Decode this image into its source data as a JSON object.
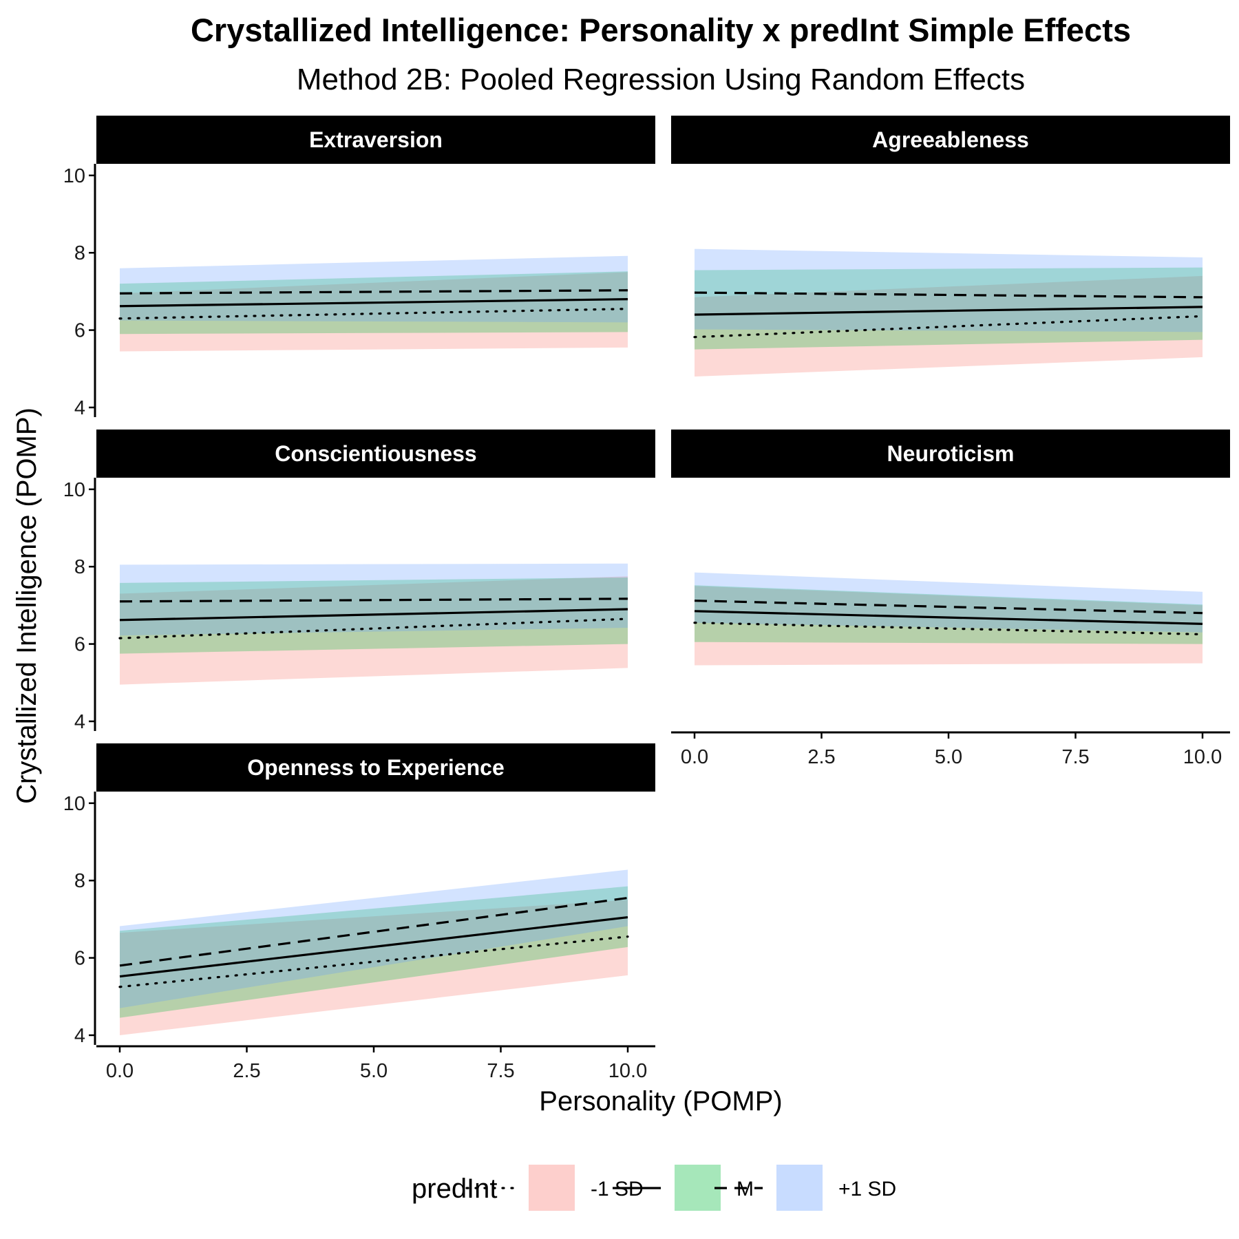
{
  "chart_data": {
    "type": "line",
    "title": "Crystallized Intelligence: Personality x predInt Simple Effects",
    "subtitle": "Method 2B: Pooled Regression Using Random Effects",
    "xlabel": "Personality (POMP)",
    "ylabel": "Crystallized Intelligence (POMP)",
    "xlim": [
      -0.4,
      10.5
    ],
    "ylim": [
      3.75,
      10.3
    ],
    "x_ticks": [
      0,
      2.5,
      5,
      7.5,
      10
    ],
    "x_tick_labels": [
      "0.0",
      "2.5",
      "5.0",
      "7.5",
      "10.0"
    ],
    "y_ticks": [
      4,
      6,
      8,
      10
    ],
    "y_tick_labels": [
      "4",
      "6",
      "8",
      "10"
    ],
    "grid": false,
    "legend": {
      "title": "predInt",
      "position": "bottom",
      "entries": [
        {
          "label": "-1 SD",
          "fill": "#F8766D",
          "linetype": "dotted"
        },
        {
          "label": "M",
          "fill": "#00BA38",
          "linetype": "solid"
        },
        {
          "label": "+1 SD",
          "fill": "#619CFF",
          "linetype": "dashed"
        }
      ]
    },
    "ribbon_opacity": 0.28,
    "line_color": "#000000",
    "panels": [
      {
        "name": "Extraversion",
        "x": [
          0,
          10
        ],
        "series": [
          {
            "name": "-1 SD",
            "y": [
              6.3,
              6.55
            ],
            "lower": [
              5.45,
              5.55
            ],
            "upper": [
              6.95,
              7.5
            ]
          },
          {
            "name": "M",
            "y": [
              6.62,
              6.8
            ],
            "lower": [
              5.9,
              5.95
            ],
            "upper": [
              7.2,
              7.52
            ]
          },
          {
            "name": "+1 SD",
            "y": [
              6.95,
              7.03
            ],
            "lower": [
              6.25,
              6.2
            ],
            "upper": [
              7.6,
              7.92
            ]
          }
        ]
      },
      {
        "name": "Agreeableness",
        "x": [
          0,
          10
        ],
        "series": [
          {
            "name": "-1 SD",
            "y": [
              5.82,
              6.36
            ],
            "lower": [
              4.8,
              5.3
            ],
            "upper": [
              6.85,
              7.4
            ]
          },
          {
            "name": "M",
            "y": [
              6.4,
              6.6
            ],
            "lower": [
              5.5,
              5.75
            ],
            "upper": [
              7.55,
              7.62
            ]
          },
          {
            "name": "+1 SD",
            "y": [
              6.97,
              6.85
            ],
            "lower": [
              6.02,
              5.95
            ],
            "upper": [
              8.1,
              7.88
            ]
          }
        ]
      },
      {
        "name": "Conscientiousness",
        "x": [
          0,
          10
        ],
        "series": [
          {
            "name": "-1 SD",
            "y": [
              6.15,
              6.65
            ],
            "lower": [
              4.95,
              5.38
            ],
            "upper": [
              7.3,
              7.75
            ]
          },
          {
            "name": "M",
            "y": [
              6.62,
              6.9
            ],
            "lower": [
              5.75,
              6.0
            ],
            "upper": [
              7.58,
              7.72
            ]
          },
          {
            "name": "+1 SD",
            "y": [
              7.1,
              7.17
            ],
            "lower": [
              6.22,
              6.42
            ],
            "upper": [
              8.05,
              8.08
            ]
          }
        ]
      },
      {
        "name": "Neuroticism",
        "x": [
          0,
          10
        ],
        "series": [
          {
            "name": "-1 SD",
            "y": [
              6.55,
              6.25
            ],
            "lower": [
              5.45,
              5.5
            ],
            "upper": [
              7.5,
              7.0
            ]
          },
          {
            "name": "M",
            "y": [
              6.85,
              6.52
            ],
            "lower": [
              6.05,
              6.0
            ],
            "upper": [
              7.52,
              7.02
            ]
          },
          {
            "name": "+1 SD",
            "y": [
              7.12,
              6.8
            ],
            "lower": [
              6.55,
              6.3
            ],
            "upper": [
              7.85,
              7.35
            ]
          }
        ]
      },
      {
        "name": "Openness to Experience",
        "x": [
          0,
          10
        ],
        "series": [
          {
            "name": "-1 SD",
            "y": [
              5.25,
              6.55
            ],
            "lower": [
              4.0,
              5.55
            ],
            "upper": [
              6.65,
              7.5
            ]
          },
          {
            "name": "M",
            "y": [
              5.52,
              7.05
            ],
            "lower": [
              4.45,
              6.28
            ],
            "upper": [
              6.7,
              7.85
            ]
          },
          {
            "name": "+1 SD",
            "y": [
              5.8,
              7.55
            ],
            "lower": [
              4.7,
              6.82
            ],
            "upper": [
              6.82,
              8.28
            ]
          }
        ]
      }
    ]
  }
}
